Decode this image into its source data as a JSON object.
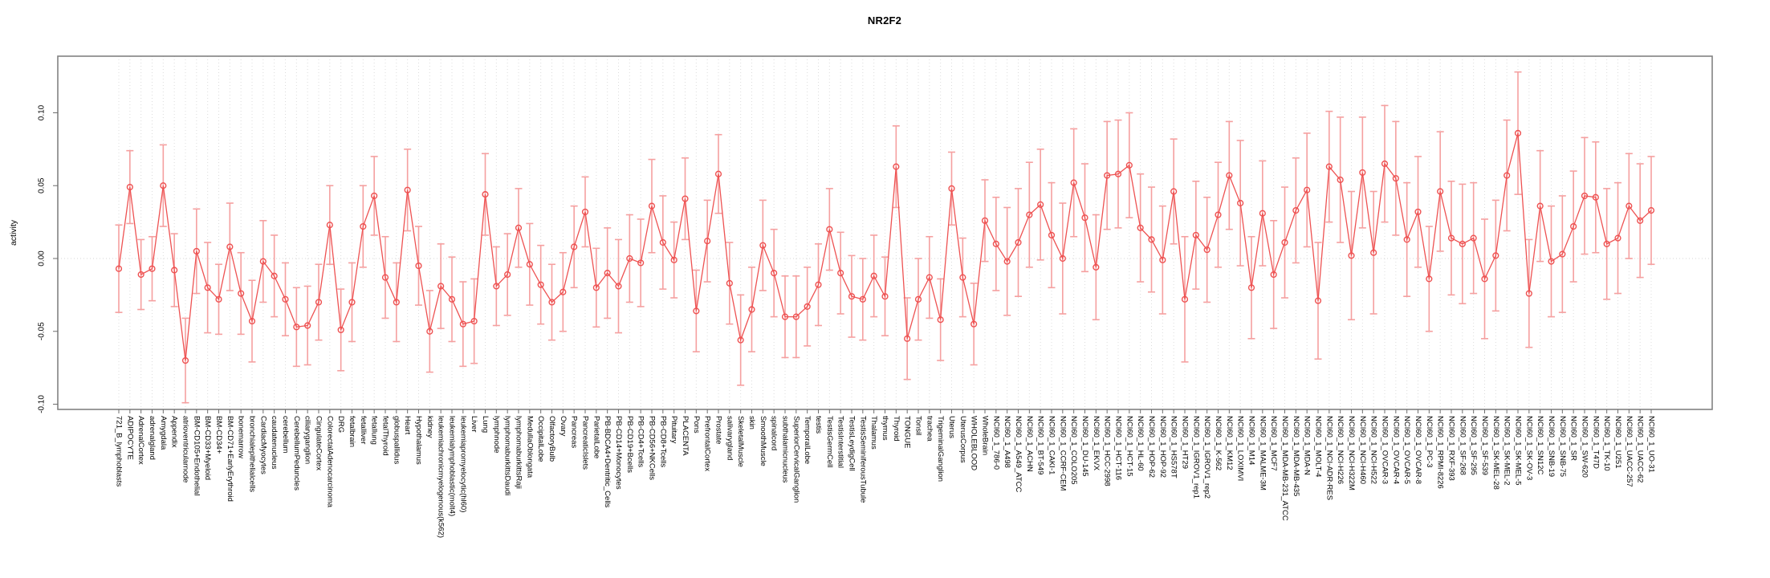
{
  "chart_data": {
    "type": "line",
    "title": "NR2F2",
    "ylabel": "activity",
    "ylim": [
      -0.113,
      0.132
    ],
    "ytick_labels": [
      "0.10",
      "0.05",
      "0.00",
      "-0.05",
      "-0.10"
    ],
    "ytick_values": [
      0.1,
      0.05,
      0.0,
      -0.05,
      -0.1
    ],
    "grid": "light dotted vertical line at every category; dotted horizontal line at 0",
    "legend": "none",
    "marker": "open-circle",
    "categories": [
      "721_B_lymphoblasts",
      "ADIPOCYTE",
      "AdrenalCortex",
      "adrenalgland",
      "Amygdala",
      "Appendix",
      "atrioventricularnode",
      "BM-CD105+Endothelial",
      "BM-CD33+Myeloid",
      "BM-CD34+",
      "BM-CD71+EarlyErythroid",
      "bonemarrow",
      "bronchialepithelialcells",
      "CardiacMyocytes",
      "caudatenucleus",
      "cerebellum",
      "CerebellumPeduncles",
      "ciliaryganglion",
      "CingulateCortex",
      "ColorectalAdenocarcinoma",
      "DRG",
      "fetalbrain",
      "fetalliver",
      "fetallung",
      "fetalThyroid",
      "globuspallidus",
      "Heart",
      "Hypothalamus",
      "kidney",
      "leukemiachronicmyelogenous(k562)",
      "leukemialymphoblastic(molt4)",
      "leukemiapromyelocytic(hl60)",
      "Liver",
      "Lung",
      "lymphnode",
      "lymphomaburkittsDaudi",
      "lymphomaburkittsRaji",
      "MedullaOblongata",
      "OccipitalLobe",
      "OlfactoryBulb",
      "Ovary",
      "Pancreas",
      "PancreaticIslets",
      "ParietalLobe",
      "PB-BDCA4+Dentritic_Cells",
      "PB-CD14+Monocytes",
      "PB-CD19+Bcells",
      "PB-CD4+Tcells",
      "PB-CD56+NKCells",
      "PB-CD8+Tcells",
      "Pituitary",
      "PLACENTA",
      "Pons",
      "PrefrontalCortex",
      "Prostate",
      "salivarygland",
      "SkeletalMuscle",
      "skin",
      "SmoothMuscle",
      "spinalcord",
      "subthalamicnucleus",
      "SuperiorCervicalGanglion",
      "TemporalLobe",
      "testis",
      "TestisGermCell",
      "TestisInterstitial",
      "TestisLeydigCell",
      "TestisSeminiferousTubule",
      "Thalamus",
      "thymus",
      "Thyroid",
      "TONGUE",
      "Tonsil",
      "trachea",
      "TrigeminalGanglion",
      "Uterus",
      "UterusCorpus",
      "WHOLEBLOOD",
      "WholeBrain",
      "NCI60_1_786-0",
      "NCI60_1_A498",
      "NCI60_1_A549_ATCC",
      "NCI60_1_ACHN",
      "NCI60_1_BT-549",
      "NCI60_1_CAKI-1",
      "NCI60_1_CCRF-CEM",
      "NCI60_1_COLO205",
      "NCI60_1_DU-145",
      "NCI60_1_EKVX",
      "NCI60_1_HCC-2998",
      "NCI60_1_HCT-116",
      "NCI60_1_HCT-15",
      "NCI60_1_HL-60",
      "NCI60_1_HOP-62",
      "NCI60_1_HOP-92",
      "NCI60_1_HS578T",
      "NCI60_1_HT29",
      "NCI60_1_IGROV1_rep1",
      "NCI60_1_IGROV1_rep2",
      "NCI60_1_K-562",
      "NCI60_1_KM12",
      "NCI60_1_LOXIMVI",
      "NCI60_1_M14",
      "NCI60_1_MALME-3M",
      "NCI60_1_MCF7",
      "NCI60_1_MDA-MB-231_ATCC",
      "NCI60_1_MDA-MB-435",
      "NCI60_1_MDA-N",
      "NCI60_1_MOLT-4",
      "NCI60_1_NCI-ADR-RES",
      "NCI60_1_NCI-H226",
      "NCI60_1_NCI-H322M",
      "NCI60_1_NCI-H460",
      "NCI60_1_NCI-H522",
      "NCI60_1_OVCAR-3",
      "NCI60_1_OVCAR-4",
      "NCI60_1_OVCAR-5",
      "NCI60_1_OVCAR-8",
      "NCI60_1_PC-3",
      "NCI60_1_RPMI-8226",
      "NCI60_1_RXF-393",
      "NCI60_1_SF-268",
      "NCI60_1_SF-295",
      "NCI60_1_SF-539",
      "NCI60_1_SK-MEL-28",
      "NCI60_1_SK-MEL-2",
      "NCI60_1_SK-MEL-5",
      "NCI60_1_SK-OV-3",
      "NCI60_1_SN12C",
      "NCI60_1_SNB-19",
      "NCI60_1_SNB-75",
      "NCI60_1_SR",
      "NCI60_1_SW-620",
      "NCI60_1_T47D",
      "NCI60_1_TK-10",
      "NCI60_1_U251",
      "NCI60_1_UACC-257",
      "NCI60_1_UACC-62",
      "NCI60_1_UO-31"
    ],
    "series": [
      {
        "name": "activity",
        "values": [
          -0.007,
          0.049,
          -0.011,
          -0.007,
          0.05,
          -0.008,
          -0.07,
          0.005,
          -0.02,
          -0.028,
          0.008,
          -0.024,
          -0.043,
          -0.002,
          -0.012,
          -0.028,
          -0.047,
          -0.046,
          -0.03,
          0.023,
          -0.049,
          -0.03,
          0.022,
          0.043,
          -0.013,
          -0.03,
          0.047,
          -0.005,
          -0.05,
          -0.019,
          -0.028,
          -0.045,
          -0.043,
          0.044,
          -0.019,
          -0.011,
          0.021,
          -0.004,
          -0.018,
          -0.03,
          -0.023,
          0.008,
          0.032,
          -0.02,
          -0.01,
          -0.019,
          0.0,
          -0.003,
          0.036,
          0.011,
          -0.001,
          0.041,
          -0.036,
          0.012,
          0.058,
          -0.017,
          -0.056,
          -0.035,
          0.009,
          -0.01,
          -0.04,
          -0.04,
          -0.033,
          -0.018,
          0.02,
          -0.01,
          -0.026,
          -0.028,
          -0.012,
          -0.026,
          0.063,
          -0.055,
          -0.028,
          -0.013,
          -0.042,
          0.048,
          -0.013,
          -0.045,
          0.026,
          0.01,
          -0.002,
          0.011,
          0.03,
          0.037,
          0.016,
          0.0,
          0.052,
          0.028,
          -0.006,
          0.057,
          0.058,
          0.064,
          0.021,
          0.013,
          -0.001,
          0.046,
          -0.028,
          0.016,
          0.006,
          0.03,
          0.057,
          0.038,
          -0.02,
          0.031,
          -0.011,
          0.011,
          0.033,
          0.047,
          -0.029,
          0.063,
          0.054,
          0.002,
          0.059,
          0.004,
          0.065,
          0.055,
          0.013,
          0.032,
          -0.014,
          0.046,
          0.014,
          0.01,
          0.014,
          -0.014,
          0.002,
          0.057,
          0.086,
          -0.024,
          0.036,
          -0.002,
          0.003,
          0.022,
          0.043,
          0.042,
          0.01,
          0.014,
          0.036,
          0.026,
          0.033
        ],
        "stderr": [
          0.03,
          0.025,
          0.024,
          0.022,
          0.028,
          0.025,
          0.029,
          0.029,
          0.031,
          0.024,
          0.03,
          0.028,
          0.028,
          0.028,
          0.028,
          0.025,
          0.027,
          0.027,
          0.026,
          0.027,
          0.028,
          0.027,
          0.028,
          0.027,
          0.028,
          0.027,
          0.028,
          0.027,
          0.028,
          0.029,
          0.029,
          0.029,
          0.029,
          0.028,
          0.027,
          0.028,
          0.027,
          0.028,
          0.027,
          0.026,
          0.027,
          0.028,
          0.024,
          0.027,
          0.031,
          0.032,
          0.03,
          0.03,
          0.032,
          0.032,
          0.026,
          0.028,
          0.028,
          0.028,
          0.027,
          0.028,
          0.031,
          0.029,
          0.031,
          0.03,
          0.028,
          0.028,
          0.027,
          0.028,
          0.028,
          0.028,
          0.028,
          0.028,
          0.028,
          0.027,
          0.028,
          0.028,
          0.028,
          0.028,
          0.028,
          0.025,
          0.027,
          0.028,
          0.028,
          0.032,
          0.037,
          0.037,
          0.036,
          0.038,
          0.036,
          0.038,
          0.037,
          0.037,
          0.036,
          0.037,
          0.037,
          0.036,
          0.037,
          0.036,
          0.037,
          0.036,
          0.043,
          0.037,
          0.036,
          0.036,
          0.037,
          0.043,
          0.035,
          0.036,
          0.037,
          0.038,
          0.036,
          0.039,
          0.04,
          0.038,
          0.043,
          0.044,
          0.038,
          0.042,
          0.04,
          0.039,
          0.039,
          0.038,
          0.036,
          0.041,
          0.039,
          0.041,
          0.038,
          0.041,
          0.038,
          0.038,
          0.042,
          0.037,
          0.038,
          0.038,
          0.04,
          0.038,
          0.04,
          0.038,
          0.038,
          0.038,
          0.036,
          0.039,
          0.037
        ]
      }
    ],
    "style": {
      "line_color": "#ee5252",
      "marker_color": "#ee5252",
      "errorbar_color": "#f5a0a0",
      "grid_color": "#dcdcdc",
      "zero_line_color": "#d4d4d4",
      "border_color": "#828282",
      "tick_color": "#6e6e6e",
      "text_color": "#000000",
      "background": "#ffffff"
    }
  }
}
